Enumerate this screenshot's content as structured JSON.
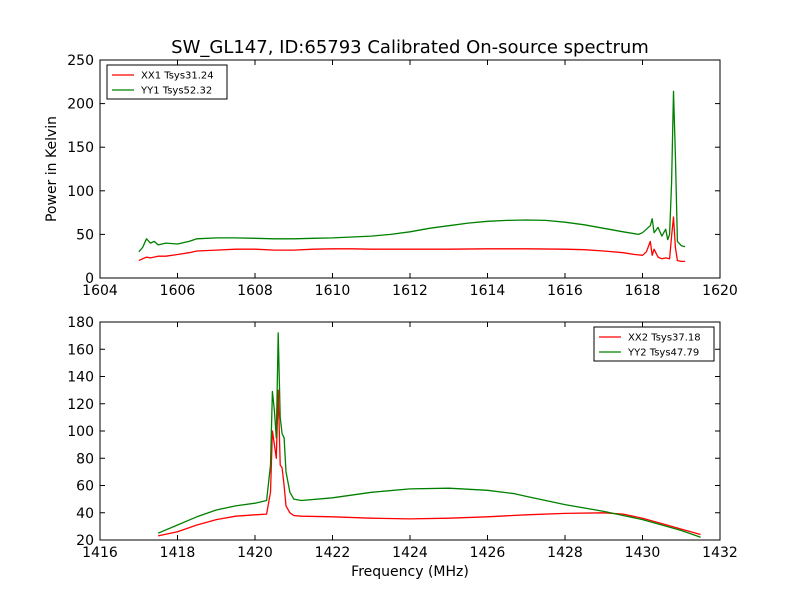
{
  "title": "SW_GL147, ID:65793 Calibrated On-source spectrum",
  "colors": {
    "xx": "#ff0000",
    "yy": "#008000"
  },
  "chart_data": [
    {
      "type": "line",
      "xlabel": "",
      "ylabel": "Power in Kelvin",
      "xlim": [
        1604,
        1620
      ],
      "ylim": [
        0,
        250
      ],
      "xticks": [
        1604,
        1606,
        1608,
        1610,
        1612,
        1614,
        1616,
        1618,
        1620
      ],
      "yticks": [
        0,
        50,
        100,
        150,
        200,
        250
      ],
      "legend_position": "top-left",
      "grid": false,
      "series": [
        {
          "name": "XX1 Tsys31.24",
          "color": "#ff0000",
          "x": [
            1605.0,
            1605.1,
            1605.2,
            1605.3,
            1605.5,
            1605.7,
            1606.0,
            1606.3,
            1606.5,
            1607.0,
            1607.5,
            1608.0,
            1608.5,
            1609.0,
            1609.5,
            1610.0,
            1610.5,
            1611.0,
            1612.0,
            1613.0,
            1614.0,
            1615.0,
            1616.0,
            1616.5,
            1617.0,
            1617.5,
            1617.8,
            1618.0,
            1618.1,
            1618.2,
            1618.25,
            1618.3,
            1618.4,
            1618.5,
            1618.6,
            1618.7,
            1618.75,
            1618.8,
            1618.85,
            1618.9,
            1619.0,
            1619.1
          ],
          "y": [
            20,
            22,
            24,
            23,
            25,
            25,
            27,
            29,
            31,
            32,
            33,
            33,
            32,
            32,
            33,
            33.5,
            33.5,
            33,
            33,
            33,
            33.5,
            33.5,
            33,
            32.5,
            31,
            29,
            27,
            26,
            30,
            42,
            26,
            33,
            24,
            22,
            23,
            22,
            48,
            70,
            35,
            20,
            19,
            19
          ]
        },
        {
          "name": "YY1 Tsys52.32",
          "color": "#008000",
          "x": [
            1605.0,
            1605.1,
            1605.2,
            1605.3,
            1605.4,
            1605.5,
            1605.7,
            1606.0,
            1606.3,
            1606.5,
            1607.0,
            1607.5,
            1608.0,
            1608.5,
            1609.0,
            1609.5,
            1610.0,
            1610.5,
            1611.0,
            1611.5,
            1612.0,
            1612.5,
            1613.0,
            1613.5,
            1614.0,
            1614.5,
            1615.0,
            1615.5,
            1616.0,
            1616.5,
            1617.0,
            1617.5,
            1617.9,
            1618.0,
            1618.1,
            1618.2,
            1618.25,
            1618.3,
            1618.4,
            1618.5,
            1618.6,
            1618.65,
            1618.7,
            1618.75,
            1618.8,
            1618.85,
            1618.9,
            1619.0,
            1619.1
          ],
          "y": [
            30,
            35,
            45,
            40,
            42,
            38,
            40,
            39,
            42,
            45,
            46,
            46,
            45.5,
            45,
            45,
            45.5,
            46,
            47,
            48,
            50,
            53,
            57,
            60,
            63,
            65,
            66,
            66.5,
            66,
            64,
            61,
            57,
            53,
            50,
            52,
            56,
            60,
            68,
            52,
            58,
            48,
            56,
            44,
            50,
            110,
            214,
            140,
            42,
            37,
            36
          ]
        }
      ]
    },
    {
      "type": "line",
      "xlabel": "Frequency (MHz)",
      "ylabel": "",
      "xlim": [
        1416,
        1432
      ],
      "ylim": [
        20,
        180
      ],
      "xticks": [
        1416,
        1418,
        1420,
        1422,
        1424,
        1426,
        1428,
        1430,
        1432
      ],
      "yticks": [
        20,
        40,
        60,
        80,
        100,
        120,
        140,
        160,
        180
      ],
      "legend_position": "top-right",
      "grid": false,
      "series": [
        {
          "name": "XX2 Tsys37.18",
          "color": "#ff0000",
          "x": [
            1417.5,
            1418.0,
            1418.5,
            1419.0,
            1419.5,
            1420.0,
            1420.3,
            1420.4,
            1420.45,
            1420.5,
            1420.55,
            1420.6,
            1420.65,
            1420.7,
            1420.75,
            1420.8,
            1420.9,
            1421.0,
            1421.2,
            1422.0,
            1423.0,
            1424.0,
            1425.0,
            1426.0,
            1427.0,
            1428.0,
            1429.0,
            1429.5,
            1430.0,
            1430.5,
            1431.0,
            1431.5
          ],
          "y": [
            23,
            26,
            31,
            35,
            37.5,
            38.5,
            39,
            55,
            100,
            90,
            80,
            130,
            75,
            73,
            60,
            45,
            40,
            38,
            37.5,
            37,
            36,
            35.5,
            36,
            37,
            38.5,
            39.5,
            40,
            39,
            36,
            32,
            28,
            24
          ]
        },
        {
          "name": "YY2 Tsys47.79",
          "color": "#008000",
          "x": [
            1417.5,
            1418.0,
            1418.5,
            1419.0,
            1419.5,
            1420.0,
            1420.3,
            1420.4,
            1420.45,
            1420.5,
            1420.55,
            1420.6,
            1420.65,
            1420.7,
            1420.75,
            1420.8,
            1420.9,
            1421.0,
            1421.2,
            1422.0,
            1423.0,
            1424.0,
            1425.0,
            1426.0,
            1426.7,
            1427.0,
            1428.0,
            1429.0,
            1429.5,
            1430.0,
            1430.5,
            1431.0,
            1431.5
          ],
          "y": [
            25,
            31,
            37,
            42,
            45,
            47,
            49,
            75,
            129,
            115,
            95,
            172,
            110,
            98,
            95,
            70,
            55,
            50,
            49,
            51,
            55,
            57.5,
            58,
            56.5,
            54,
            52,
            46,
            41,
            38,
            35,
            31,
            27,
            22
          ]
        }
      ]
    }
  ]
}
